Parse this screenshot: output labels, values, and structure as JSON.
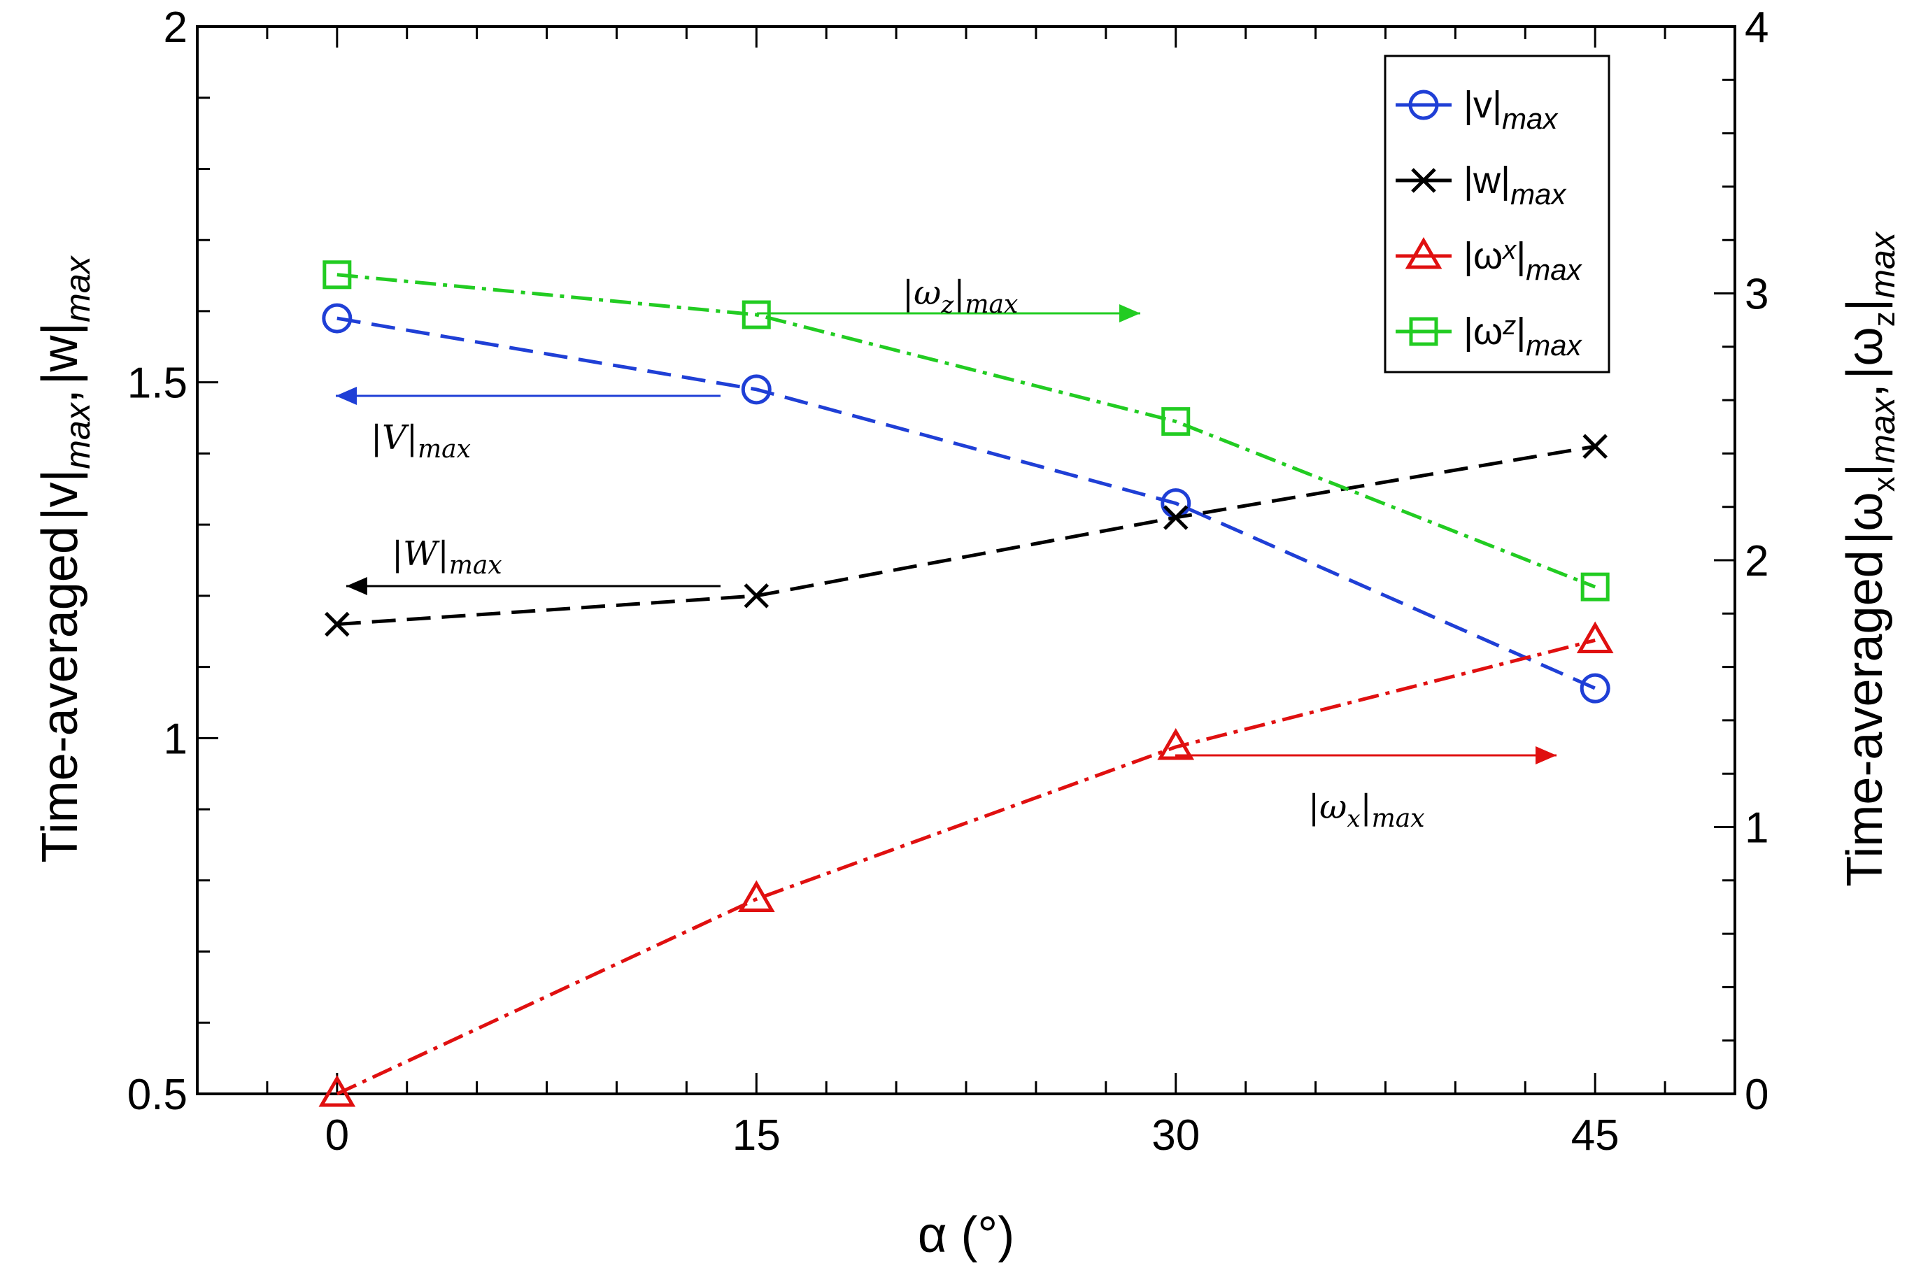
{
  "chart_data": {
    "type": "line",
    "x": [
      0,
      15,
      30,
      45
    ],
    "xlim": [
      -5,
      50
    ],
    "xticks": [
      0,
      15,
      30,
      45
    ],
    "xlabel": "α (°)",
    "ylim_left": [
      0.5,
      2
    ],
    "yticks_left": [
      "0.5",
      "1",
      "1.5",
      "2"
    ],
    "ylim_right": [
      0,
      4
    ],
    "yticks_right": [
      "0",
      "1",
      "2",
      "3",
      "4"
    ],
    "ylabel_left": {
      "prefix": "Time-averaged",
      "part1": "|v|",
      "sub1": "max",
      "sep": ",",
      "part2": "|w|",
      "sub2": "max"
    },
    "ylabel_right": {
      "prefix": "Time-averaged",
      "part1": "|ω",
      "sub1x": "x",
      "mid1": "|",
      "sub1": "max",
      "sep": ",",
      "part2": "|ω",
      "sub2z": "z",
      "mid2": "|",
      "sub2": "max"
    },
    "series": [
      {
        "name": "|v|max",
        "label_main": "|v|",
        "label_sub": "max",
        "axis": "left",
        "values": [
          1.59,
          1.49,
          1.33,
          1.07
        ],
        "color": "#1f3fd6",
        "marker": "circle",
        "dash": "dashed"
      },
      {
        "name": "|w|max",
        "label_main": "|w|",
        "label_sub": "max",
        "axis": "left",
        "values": [
          1.16,
          1.2,
          1.31,
          1.41
        ],
        "color": "#000000",
        "marker": "x",
        "dash": "dashed"
      },
      {
        "name": "|ωx|max",
        "label_main": "|ω",
        "label_mid": "x",
        "label_close": "|",
        "label_sub": "max",
        "axis": "right",
        "values": [
          0.0,
          0.73,
          1.3,
          1.7
        ],
        "color": "#e01010",
        "marker": "triangle",
        "dash": "dashdot"
      },
      {
        "name": "|ωz|max",
        "label_main": "|ω",
        "label_mid": "z",
        "label_close": "|",
        "label_sub": "max",
        "axis": "right",
        "values": [
          3.07,
          2.92,
          2.52,
          1.9
        ],
        "color": "#22cc22",
        "marker": "square",
        "dash": "dashdot"
      }
    ],
    "annotations": [
      {
        "main": "|ω",
        "sub1": "z",
        "close": "|",
        "sub2": "max",
        "color": "#22cc22",
        "arrow": "right"
      },
      {
        "main": "|V|",
        "sub1": "",
        "close": "",
        "sub2": "max",
        "color": "#1f3fd6",
        "arrow": "left"
      },
      {
        "main": "|W|",
        "sub1": "",
        "close": "",
        "sub2": "max",
        "color": "#000000",
        "arrow": "left"
      },
      {
        "main": "|ω",
        "sub1": "x",
        "close": "|",
        "sub2": "max",
        "color": "#e01010",
        "arrow": "right"
      }
    ],
    "legend_position": "top-right"
  }
}
